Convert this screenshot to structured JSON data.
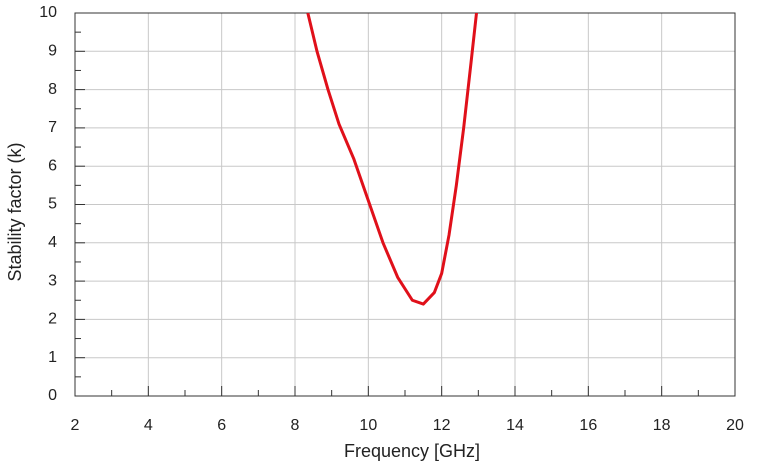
{
  "chart_data": {
    "type": "line",
    "x_label": "Frequency [GHz]",
    "y_label": "Stability factor (k)",
    "x": [
      8.35,
      8.6,
      8.9,
      9.2,
      9.6,
      10,
      10.4,
      10.8,
      11.2,
      11.5,
      11.8,
      12,
      12.2,
      12.4,
      12.6,
      12.8,
      12.95
    ],
    "series": [
      {
        "name": "k",
        "color": "#e0101a",
        "values": [
          10,
          9,
          8,
          7.1,
          6.2,
          5.1,
          4,
          3.1,
          2.5,
          2.4,
          2.7,
          3.2,
          4.2,
          5.5,
          7,
          8.7,
          10
        ]
      }
    ],
    "xlim": [
      2,
      20
    ],
    "xticks": [
      2,
      4,
      6,
      8,
      10,
      12,
      14,
      16,
      18,
      20
    ],
    "xminorticks": [
      3,
      5,
      7,
      9,
      11,
      13,
      15,
      17,
      19
    ],
    "ylim": [
      0,
      10
    ],
    "yticks": [
      0,
      1,
      2,
      3,
      4,
      5,
      6,
      7,
      8,
      9,
      10
    ],
    "yminorticks": [
      0.5,
      1.5,
      2.5,
      3.5,
      4.5,
      5.5,
      6.5,
      7.5,
      8.5,
      9.5
    ],
    "grid": true
  }
}
